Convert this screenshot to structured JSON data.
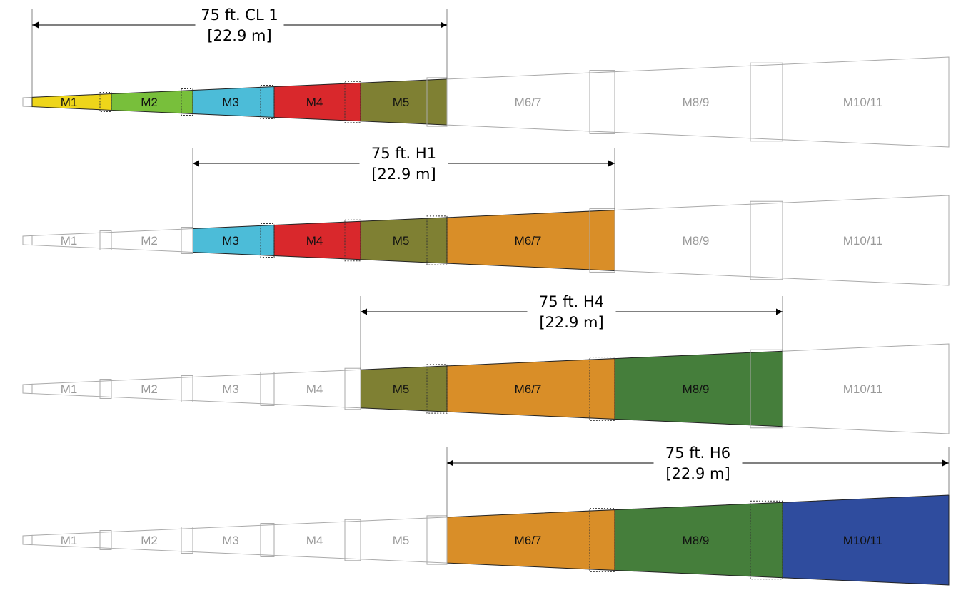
{
  "colors": {
    "M1": "#eed51a",
    "M2": "#78bf3b",
    "M3": "#4cbcd8",
    "M4": "#d9282c",
    "M5": "#7f8033",
    "M6/7": "#d98e28",
    "M8/9": "#457e3b",
    "M10/11": "#2f4c9e",
    "inactive_outline": "#aaaaaa",
    "inactive_text": "#9a9a9a",
    "active_text": "#111111"
  },
  "segments": [
    "M1",
    "M2",
    "M3",
    "M4",
    "M5",
    "M6/7",
    "M8/9",
    "M10/11"
  ],
  "rows": [
    {
      "dimension": {
        "line1": "75 ft. CL 1",
        "line2": "[22.9 m]"
      },
      "active": [
        "M1",
        "M2",
        "M3",
        "M4",
        "M5"
      ],
      "labels": [
        "M1",
        "M2",
        "M3",
        "M4",
        "M5",
        "M6/7",
        "M8/9",
        "M10/11"
      ]
    },
    {
      "dimension": {
        "line1": "75 ft. H1",
        "line2": "[22.9 m]"
      },
      "active": [
        "M3",
        "M4",
        "M5",
        "M6/7"
      ],
      "labels": [
        "M1",
        "M2",
        "M3",
        "M4",
        "M5",
        "M6/7",
        "M8/9",
        "M10/11"
      ]
    },
    {
      "dimension": {
        "line1": "75 ft. H4",
        "line2": "[22.9 m]"
      },
      "active": [
        "M5",
        "M6/7",
        "M8/9"
      ],
      "labels": [
        "M1",
        "M2",
        "M3",
        "M4",
        "M5",
        "M6/7",
        "M8/9",
        "M10/11"
      ]
    },
    {
      "dimension": {
        "line1": "75 ft. H6",
        "line2": "[22.9 m]"
      },
      "active": [
        "M6/7",
        "M8/9",
        "M10/11"
      ],
      "labels": [
        "M1",
        "M2",
        "M3",
        "M4",
        "M5",
        "M6/7",
        "M8/9",
        "M10/11"
      ]
    }
  ]
}
